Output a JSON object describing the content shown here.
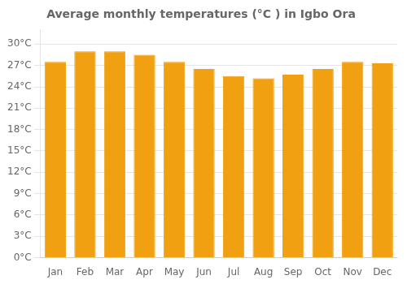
{
  "chart_data": {
    "type": "bar",
    "title": "Average monthly temperatures (°C ) in Igbo Ora",
    "categories": [
      "Jan",
      "Feb",
      "Mar",
      "Apr",
      "May",
      "Jun",
      "Jul",
      "Aug",
      "Sep",
      "Oct",
      "Nov",
      "Dec"
    ],
    "values": [
      27.5,
      29.0,
      29.0,
      28.5,
      27.5,
      26.5,
      25.5,
      25.2,
      25.7,
      26.5,
      27.5,
      27.3
    ],
    "color": "#F0A010",
    "ylim": [
      0,
      32
    ],
    "yticks": [
      {
        "value": 0,
        "label": "0°C"
      },
      {
        "value": 3,
        "label": "3°C"
      },
      {
        "value": 6,
        "label": "6°C"
      },
      {
        "value": 9,
        "label": "9°C"
      },
      {
        "value": 12,
        "label": "12°C"
      },
      {
        "value": 15,
        "label": "15°C"
      },
      {
        "value": 18,
        "label": "18°C"
      },
      {
        "value": 21,
        "label": "21°C"
      },
      {
        "value": 24,
        "label": "24°C"
      },
      {
        "value": 27,
        "label": "27°C"
      },
      {
        "value": 30,
        "label": "30°C"
      }
    ],
    "grid": true
  }
}
